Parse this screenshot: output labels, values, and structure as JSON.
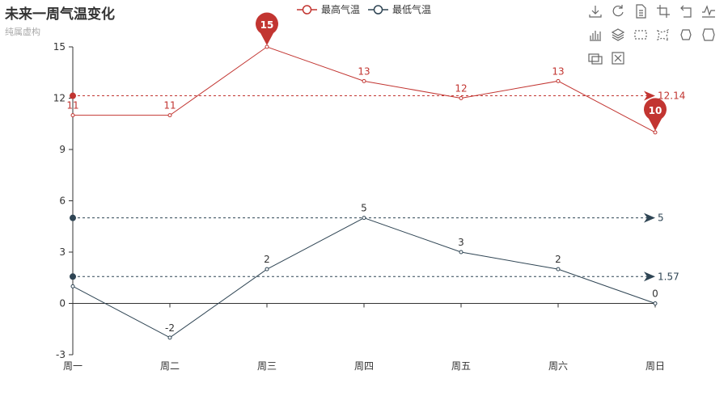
{
  "title": "未来一周气温变化",
  "subtitle": "纯属虚构",
  "toolbox": [
    "download-icon",
    "refresh-icon",
    "data-view-icon",
    "crop-icon",
    "undo-icon",
    "line-chart-icon",
    "bar-chart-icon",
    "stack-icon",
    "rect-select-icon",
    "lasso-select-icon",
    "brush-keep-icon",
    "brush-clear-icon",
    "zoom-icon",
    "zoom-reset-icon"
  ],
  "chart_data": {
    "type": "line",
    "categories": [
      "周一",
      "周二",
      "周三",
      "周四",
      "周五",
      "周六",
      "周日"
    ],
    "ylim": [
      -3,
      15
    ],
    "yticks": [
      -3,
      0,
      3,
      6,
      9,
      12,
      15
    ],
    "grid": false,
    "legend_position": "top-center",
    "series": [
      {
        "name": "最高气温",
        "color": "#c23531",
        "values": [
          11,
          11,
          15,
          13,
          12,
          13,
          10
        ],
        "data_labels": [
          "11",
          "11",
          "",
          "13",
          "12",
          "13",
          ""
        ],
        "mark_points": [
          {
            "index": 2,
            "value": 15,
            "label": "15"
          },
          {
            "index": 6,
            "value": 10,
            "label": "10"
          }
        ],
        "mark_lines": [
          {
            "value": 12.14,
            "label": "12.14"
          }
        ]
      },
      {
        "name": "最低气温",
        "color": "#2f4554",
        "values": [
          1,
          -2,
          2,
          5,
          3,
          2,
          0
        ],
        "data_labels": [
          "",
          "-2",
          "2",
          "5",
          "3",
          "2",
          "0"
        ],
        "mark_points": [],
        "mark_lines": [
          {
            "value": 5,
            "label": "5"
          },
          {
            "value": 1.57,
            "label": "1.57"
          }
        ]
      }
    ]
  }
}
